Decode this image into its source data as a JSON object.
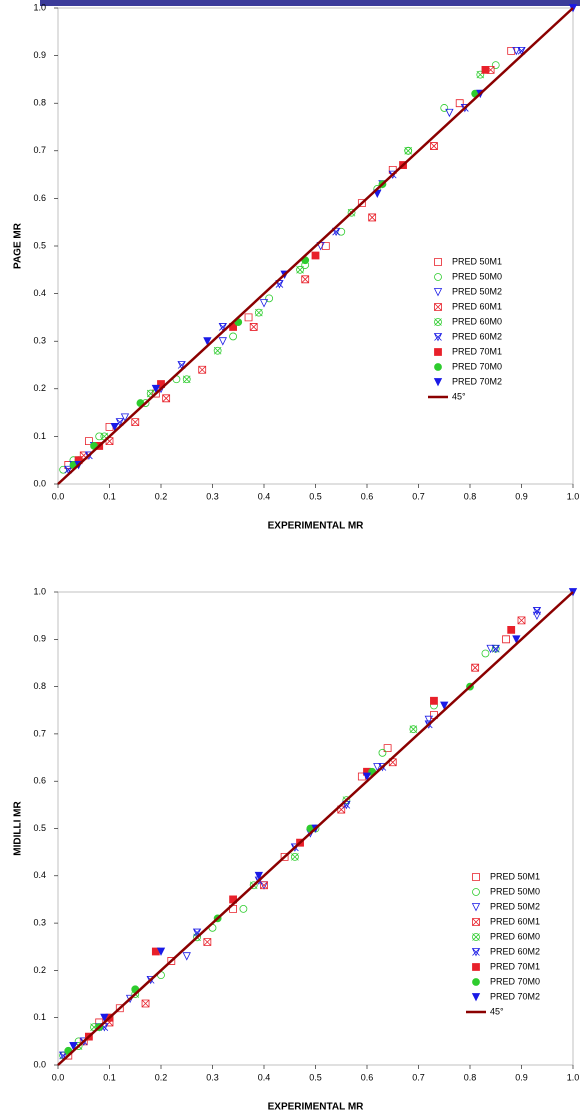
{
  "chart_data": [
    {
      "type": "scatter",
      "xlabel": "EXPERIMENTAL MR",
      "ylabel": "PAGE MR",
      "legend": "center right",
      "xlim": [
        0,
        1
      ],
      "ylim": [
        0,
        1
      ],
      "xticks": [
        {
          "value": 0,
          "label": "0.0"
        },
        0.1,
        0.2,
        0.3,
        0.4,
        0.5,
        0.6,
        0.7,
        0.8,
        0.9,
        {
          "value": 1,
          "label": "1.0"
        }
      ],
      "yticks": [
        {
          "value": 0,
          "label": "0.0"
        },
        0.1,
        0.2,
        0.3,
        0.4,
        0.5,
        0.6,
        0.7,
        0.8,
        0.9,
        {
          "value": 1,
          "label": "1.0"
        }
      ],
      "series": [
        {
          "name": "PRED 50M1",
          "color": "#e8202a",
          "marker": "square",
          "fill": "open",
          "x": [
            0.02,
            0.06,
            0.1,
            0.19,
            0.37,
            0.52,
            0.59,
            0.65,
            0.78,
            0.88
          ],
          "values": [
            0.04,
            0.09,
            0.12,
            0.19,
            0.35,
            0.5,
            0.59,
            0.66,
            0.8,
            0.91
          ]
        },
        {
          "name": "PRED 50M0",
          "color": "#2ecc2e",
          "marker": "circle",
          "fill": "open",
          "x": [
            0.01,
            0.03,
            0.08,
            0.17,
            0.23,
            0.34,
            0.41,
            0.48,
            0.55,
            0.62,
            0.68,
            0.75,
            0.85
          ],
          "values": [
            0.03,
            0.05,
            0.1,
            0.17,
            0.22,
            0.31,
            0.39,
            0.46,
            0.53,
            0.62,
            0.7,
            0.79,
            0.88
          ]
        },
        {
          "name": "PRED 50M2",
          "color": "#1a1ae6",
          "marker": "triangle",
          "fill": "open",
          "x": [
            0.03,
            0.07,
            0.13,
            0.2,
            0.32,
            0.4,
            0.51,
            0.63,
            0.76,
            0.89
          ],
          "values": [
            0.04,
            0.08,
            0.14,
            0.2,
            0.3,
            0.38,
            0.5,
            0.63,
            0.78,
            0.91
          ]
        },
        {
          "name": "PRED 60M1",
          "color": "#e8202a",
          "marker": "square",
          "fill": "cross",
          "x": [
            0.05,
            0.1,
            0.15,
            0.21,
            0.28,
            0.38,
            0.48,
            0.61,
            0.73,
            0.84
          ],
          "values": [
            0.06,
            0.09,
            0.13,
            0.18,
            0.24,
            0.33,
            0.43,
            0.56,
            0.71,
            0.87
          ]
        },
        {
          "name": "PRED 60M0",
          "color": "#2ecc2e",
          "marker": "circle",
          "fill": "cross",
          "x": [
            0.04,
            0.09,
            0.18,
            0.25,
            0.31,
            0.39,
            0.47,
            0.57,
            0.68,
            0.82
          ],
          "values": [
            0.05,
            0.1,
            0.19,
            0.22,
            0.28,
            0.36,
            0.45,
            0.57,
            0.7,
            0.86
          ]
        },
        {
          "name": "PRED 60M2",
          "color": "#1a1ae6",
          "marker": "triangle",
          "fill": "cross",
          "x": [
            0.02,
            0.06,
            0.12,
            0.24,
            0.32,
            0.43,
            0.54,
            0.65,
            0.79,
            0.9
          ],
          "values": [
            0.03,
            0.06,
            0.13,
            0.25,
            0.33,
            0.42,
            0.53,
            0.65,
            0.79,
            0.91
          ]
        },
        {
          "name": "PRED 70M1",
          "color": "#e8202a",
          "marker": "square",
          "fill": "filled",
          "x": [
            0.04,
            0.08,
            0.2,
            0.34,
            0.5,
            0.67,
            0.83
          ],
          "values": [
            0.05,
            0.08,
            0.21,
            0.33,
            0.48,
            0.67,
            0.87
          ]
        },
        {
          "name": "PRED 70M0",
          "color": "#2ecc2e",
          "marker": "circle",
          "fill": "filled",
          "x": [
            0.03,
            0.07,
            0.16,
            0.35,
            0.48,
            0.63,
            0.81
          ],
          "values": [
            0.04,
            0.08,
            0.17,
            0.34,
            0.47,
            0.63,
            0.82
          ]
        },
        {
          "name": "PRED 70M2",
          "color": "#1a1ae6",
          "marker": "triangle",
          "fill": "filled",
          "x": [
            0.04,
            0.11,
            0.19,
            0.29,
            0.44,
            0.62,
            0.82,
            1.0
          ],
          "values": [
            0.04,
            0.12,
            0.2,
            0.3,
            0.44,
            0.61,
            0.82,
            1.0
          ]
        },
        {
          "name": "45°",
          "color": "#8b0000",
          "marker": "line",
          "x": [
            0,
            1
          ],
          "values": [
            0,
            1
          ]
        }
      ]
    },
    {
      "type": "scatter",
      "xlabel": "EXPERIMENTAL MR",
      "ylabel": "MIDILLI  MR",
      "legend": "lower right",
      "xlim": [
        0,
        1
      ],
      "ylim": [
        0,
        1
      ],
      "xticks": [
        {
          "value": 0,
          "label": "0.0"
        },
        0.1,
        0.2,
        0.3,
        0.4,
        0.5,
        0.6,
        0.7,
        0.8,
        0.9,
        {
          "value": 1,
          "label": "1.0"
        }
      ],
      "yticks": [
        {
          "value": 0,
          "label": "0.0"
        },
        0.1,
        0.2,
        0.3,
        0.4,
        0.5,
        0.6,
        0.7,
        0.8,
        0.9,
        {
          "value": 1,
          "label": "1.0"
        }
      ],
      "series": [
        {
          "name": "PRED 50M1",
          "color": "#e8202a",
          "marker": "square",
          "fill": "open",
          "x": [
            0.02,
            0.08,
            0.12,
            0.22,
            0.34,
            0.44,
            0.59,
            0.64,
            0.73,
            0.87
          ],
          "values": [
            0.02,
            0.09,
            0.12,
            0.22,
            0.33,
            0.44,
            0.61,
            0.67,
            0.74,
            0.9
          ]
        },
        {
          "name": "PRED 50M0",
          "color": "#2ecc2e",
          "marker": "circle",
          "fill": "open",
          "x": [
            0.01,
            0.04,
            0.1,
            0.2,
            0.3,
            0.36,
            0.5,
            0.63,
            0.73,
            0.83
          ],
          "values": [
            0.02,
            0.05,
            0.1,
            0.19,
            0.29,
            0.33,
            0.5,
            0.66,
            0.76,
            0.87
          ]
        },
        {
          "name": "PRED 50M2",
          "color": "#1a1ae6",
          "marker": "triangle",
          "fill": "open",
          "x": [
            0.03,
            0.08,
            0.14,
            0.25,
            0.4,
            0.49,
            0.62,
            0.72,
            0.84,
            0.93
          ],
          "values": [
            0.04,
            0.08,
            0.14,
            0.23,
            0.38,
            0.49,
            0.63,
            0.73,
            0.88,
            0.95
          ]
        },
        {
          "name": "PRED 60M1",
          "color": "#e8202a",
          "marker": "square",
          "fill": "cross",
          "x": [
            0.05,
            0.1,
            0.17,
            0.29,
            0.4,
            0.55,
            0.65,
            0.81,
            0.9
          ],
          "values": [
            0.05,
            0.09,
            0.13,
            0.26,
            0.38,
            0.54,
            0.64,
            0.84,
            0.94
          ]
        },
        {
          "name": "PRED 60M0",
          "color": "#2ecc2e",
          "marker": "circle",
          "fill": "cross",
          "x": [
            0.04,
            0.07,
            0.15,
            0.27,
            0.38,
            0.46,
            0.56,
            0.69,
            0.85
          ],
          "values": [
            0.04,
            0.08,
            0.15,
            0.27,
            0.38,
            0.44,
            0.56,
            0.71,
            0.88
          ]
        },
        {
          "name": "PRED 60M2",
          "color": "#1a1ae6",
          "marker": "triangle",
          "fill": "cross",
          "x": [
            0.01,
            0.05,
            0.09,
            0.18,
            0.27,
            0.39,
            0.46,
            0.56,
            0.63,
            0.72,
            0.85,
            0.93
          ],
          "values": [
            0.02,
            0.05,
            0.08,
            0.18,
            0.28,
            0.39,
            0.46,
            0.55,
            0.63,
            0.72,
            0.88,
            0.96
          ]
        },
        {
          "name": "PRED 70M1",
          "color": "#e8202a",
          "marker": "square",
          "fill": "filled",
          "x": [
            0.06,
            0.1,
            0.19,
            0.34,
            0.47,
            0.6,
            0.73,
            0.88
          ],
          "values": [
            0.06,
            0.1,
            0.24,
            0.35,
            0.47,
            0.62,
            0.77,
            0.92
          ]
        },
        {
          "name": "PRED 70M0",
          "color": "#2ecc2e",
          "marker": "circle",
          "fill": "filled",
          "x": [
            0.02,
            0.08,
            0.15,
            0.31,
            0.49,
            0.61,
            0.8
          ],
          "values": [
            0.03,
            0.08,
            0.16,
            0.31,
            0.5,
            0.62,
            0.8
          ]
        },
        {
          "name": "PRED 70M2",
          "color": "#1a1ae6",
          "marker": "triangle",
          "fill": "filled",
          "x": [
            0.03,
            0.09,
            0.2,
            0.39,
            0.5,
            0.6,
            0.75,
            0.89,
            1.0
          ],
          "values": [
            0.04,
            0.1,
            0.24,
            0.4,
            0.5,
            0.61,
            0.76,
            0.9,
            1.0
          ]
        },
        {
          "name": "45°",
          "color": "#8b0000",
          "marker": "line",
          "x": [
            0,
            1
          ],
          "values": [
            0,
            1
          ]
        }
      ]
    }
  ]
}
